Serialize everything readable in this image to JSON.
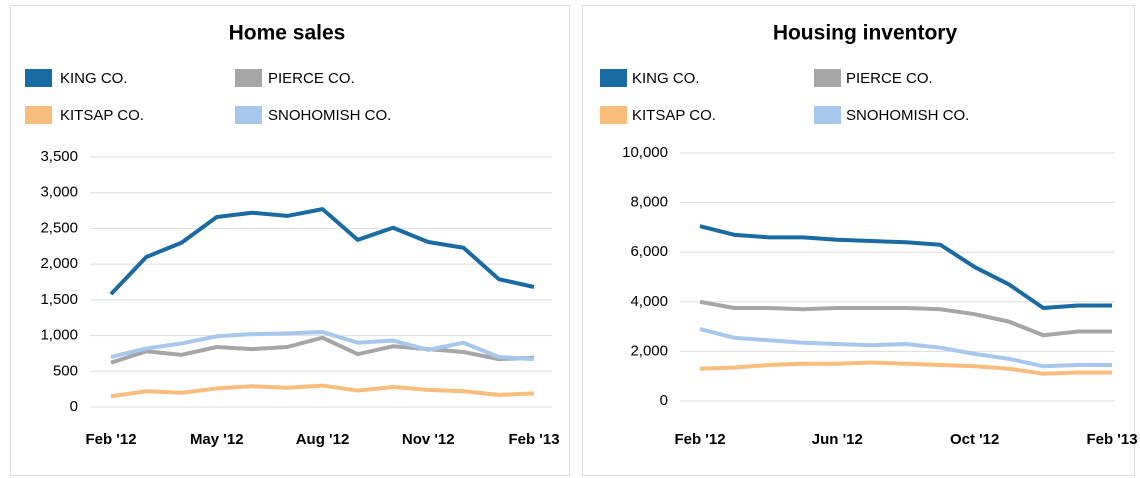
{
  "chart_data": [
    {
      "type": "line",
      "title": "Home sales",
      "categories": [
        "Feb '12",
        null,
        null,
        "May '12",
        null,
        null,
        "Aug '12",
        null,
        null,
        "Nov '12",
        null,
        null,
        "Feb '13"
      ],
      "series": [
        {
          "name": "KING CO.",
          "color": "#1a6aa3",
          "values": [
            1580,
            2100,
            2300,
            2660,
            2720,
            2675,
            2770,
            2340,
            2510,
            2310,
            2230,
            1790,
            1680
          ]
        },
        {
          "name": "PIERCE CO.",
          "color": "#a6a6a6",
          "values": [
            620,
            780,
            730,
            840,
            810,
            840,
            970,
            740,
            850,
            810,
            770,
            670,
            690
          ]
        },
        {
          "name": "KITSAP CO.",
          "color": "#f9bd7c",
          "values": [
            150,
            220,
            200,
            260,
            290,
            270,
            300,
            230,
            280,
            240,
            220,
            170,
            190
          ]
        },
        {
          "name": "SNOHOMISH CO.",
          "color": "#a7c8ec",
          "values": [
            700,
            820,
            890,
            990,
            1020,
            1030,
            1050,
            900,
            930,
            800,
            900,
            700,
            670
          ]
        }
      ],
      "ylim": [
        0,
        3500
      ],
      "yticks": [
        0,
        500,
        {
          "value": 1000,
          "label": "1,000"
        },
        {
          "value": 1500,
          "label": "1,500"
        },
        {
          "value": 2000,
          "label": "2,000"
        },
        {
          "value": 2500,
          "label": "2,500"
        },
        {
          "value": 3000,
          "label": "3,000"
        },
        {
          "value": 3500,
          "label": "3,500"
        }
      ],
      "grid": true
    },
    {
      "type": "line",
      "title": "Housing inventory",
      "categories": [
        "Feb '12",
        null,
        null,
        null,
        "Jun '12",
        null,
        null,
        null,
        "Oct '12",
        null,
        null,
        null,
        "Feb '13"
      ],
      "series": [
        {
          "name": "KING CO.",
          "color": "#1a6aa3",
          "values": [
            7050,
            6700,
            6600,
            6600,
            6500,
            6450,
            6400,
            6300,
            5400,
            4700,
            3750,
            3850,
            3850
          ]
        },
        {
          "name": "PIERCE CO.",
          "color": "#a6a6a6",
          "values": [
            4000,
            3750,
            3750,
            3700,
            3750,
            3750,
            3750,
            3700,
            3500,
            3200,
            2650,
            2800,
            2800
          ]
        },
        {
          "name": "KITSAP CO.",
          "color": "#f9bd7c",
          "values": [
            1300,
            1350,
            1450,
            1500,
            1500,
            1550,
            1500,
            1450,
            1400,
            1300,
            1100,
            1150,
            1150
          ]
        },
        {
          "name": "SNOHOMISH CO.",
          "color": "#a7c8ec",
          "values": [
            2900,
            2550,
            2450,
            2350,
            2300,
            2250,
            2300,
            2150,
            1900,
            1700,
            1400,
            1450,
            1450
          ]
        }
      ],
      "ylim": [
        0,
        10000
      ],
      "yticks": [
        0,
        {
          "value": 2000,
          "label": "2,000"
        },
        {
          "value": 4000,
          "label": "4,000"
        },
        {
          "value": 6000,
          "label": "6,000"
        },
        {
          "value": 8000,
          "label": "8,000"
        },
        {
          "value": 10000,
          "label": "10,000"
        }
      ],
      "grid": true
    }
  ]
}
